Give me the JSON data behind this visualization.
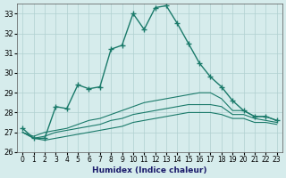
{
  "xlabel": "Humidex (Indice chaleur)",
  "ylabel": "",
  "background_color": "#d6ecec",
  "grid_color": "#b0d0d0",
  "line_color": "#1a7a6a",
  "xlim": [
    -0.5,
    23.5
  ],
  "ylim": [
    26,
    33.5
  ],
  "yticks": [
    26,
    27,
    28,
    29,
    30,
    31,
    32,
    33
  ],
  "xticks": [
    0,
    1,
    2,
    3,
    4,
    5,
    6,
    7,
    8,
    9,
    10,
    11,
    12,
    13,
    14,
    15,
    16,
    17,
    18,
    19,
    20,
    21,
    22,
    23
  ],
  "xtick_labels": [
    "0",
    "1",
    "2",
    "3",
    "4",
    "5",
    "6",
    "7",
    "8",
    "9",
    "10",
    "11",
    "12",
    "13",
    "14",
    "15",
    "16",
    "17",
    "18",
    "19",
    "20",
    "21",
    "22",
    "23"
  ],
  "line1_x": [
    0,
    1,
    2,
    3,
    4,
    5,
    6,
    7,
    8,
    9,
    10,
    11,
    12,
    13,
    14,
    15,
    16,
    17,
    18,
    19,
    20,
    21,
    22,
    23
  ],
  "line1_y": [
    27.2,
    26.7,
    26.7,
    28.3,
    28.2,
    29.4,
    29.2,
    29.3,
    31.2,
    31.4,
    33.0,
    32.2,
    33.3,
    33.4,
    32.5,
    31.5,
    30.5,
    29.8,
    29.3,
    28.6,
    28.1,
    27.8,
    27.8,
    27.6
  ],
  "line2_x": [
    0,
    1,
    2,
    3,
    4,
    5,
    6,
    7,
    8,
    9,
    10,
    11,
    12,
    13,
    14,
    15,
    16,
    17,
    18,
    19,
    20,
    21,
    22,
    23
  ],
  "line2_y": [
    27.0,
    26.8,
    27.0,
    27.1,
    27.2,
    27.4,
    27.6,
    27.7,
    27.9,
    28.1,
    28.3,
    28.5,
    28.6,
    28.7,
    28.8,
    28.9,
    29.0,
    29.0,
    28.7,
    28.1,
    28.1,
    27.8,
    27.8,
    27.6
  ],
  "line3_x": [
    0,
    1,
    2,
    3,
    4,
    5,
    6,
    7,
    8,
    9,
    10,
    11,
    12,
    13,
    14,
    15,
    16,
    17,
    18,
    19,
    20,
    21,
    22,
    23
  ],
  "line3_y": [
    27.0,
    26.7,
    26.8,
    27.0,
    27.1,
    27.2,
    27.3,
    27.4,
    27.6,
    27.7,
    27.9,
    28.0,
    28.1,
    28.2,
    28.3,
    28.4,
    28.4,
    28.4,
    28.3,
    27.9,
    27.9,
    27.7,
    27.6,
    27.5
  ],
  "line4_x": [
    0,
    1,
    2,
    3,
    4,
    5,
    6,
    7,
    8,
    9,
    10,
    11,
    12,
    13,
    14,
    15,
    16,
    17,
    18,
    19,
    20,
    21,
    22,
    23
  ],
  "line4_y": [
    27.0,
    26.7,
    26.6,
    26.7,
    26.8,
    26.9,
    27.0,
    27.1,
    27.2,
    27.3,
    27.5,
    27.6,
    27.7,
    27.8,
    27.9,
    28.0,
    28.0,
    28.0,
    27.9,
    27.7,
    27.7,
    27.5,
    27.5,
    27.4
  ]
}
